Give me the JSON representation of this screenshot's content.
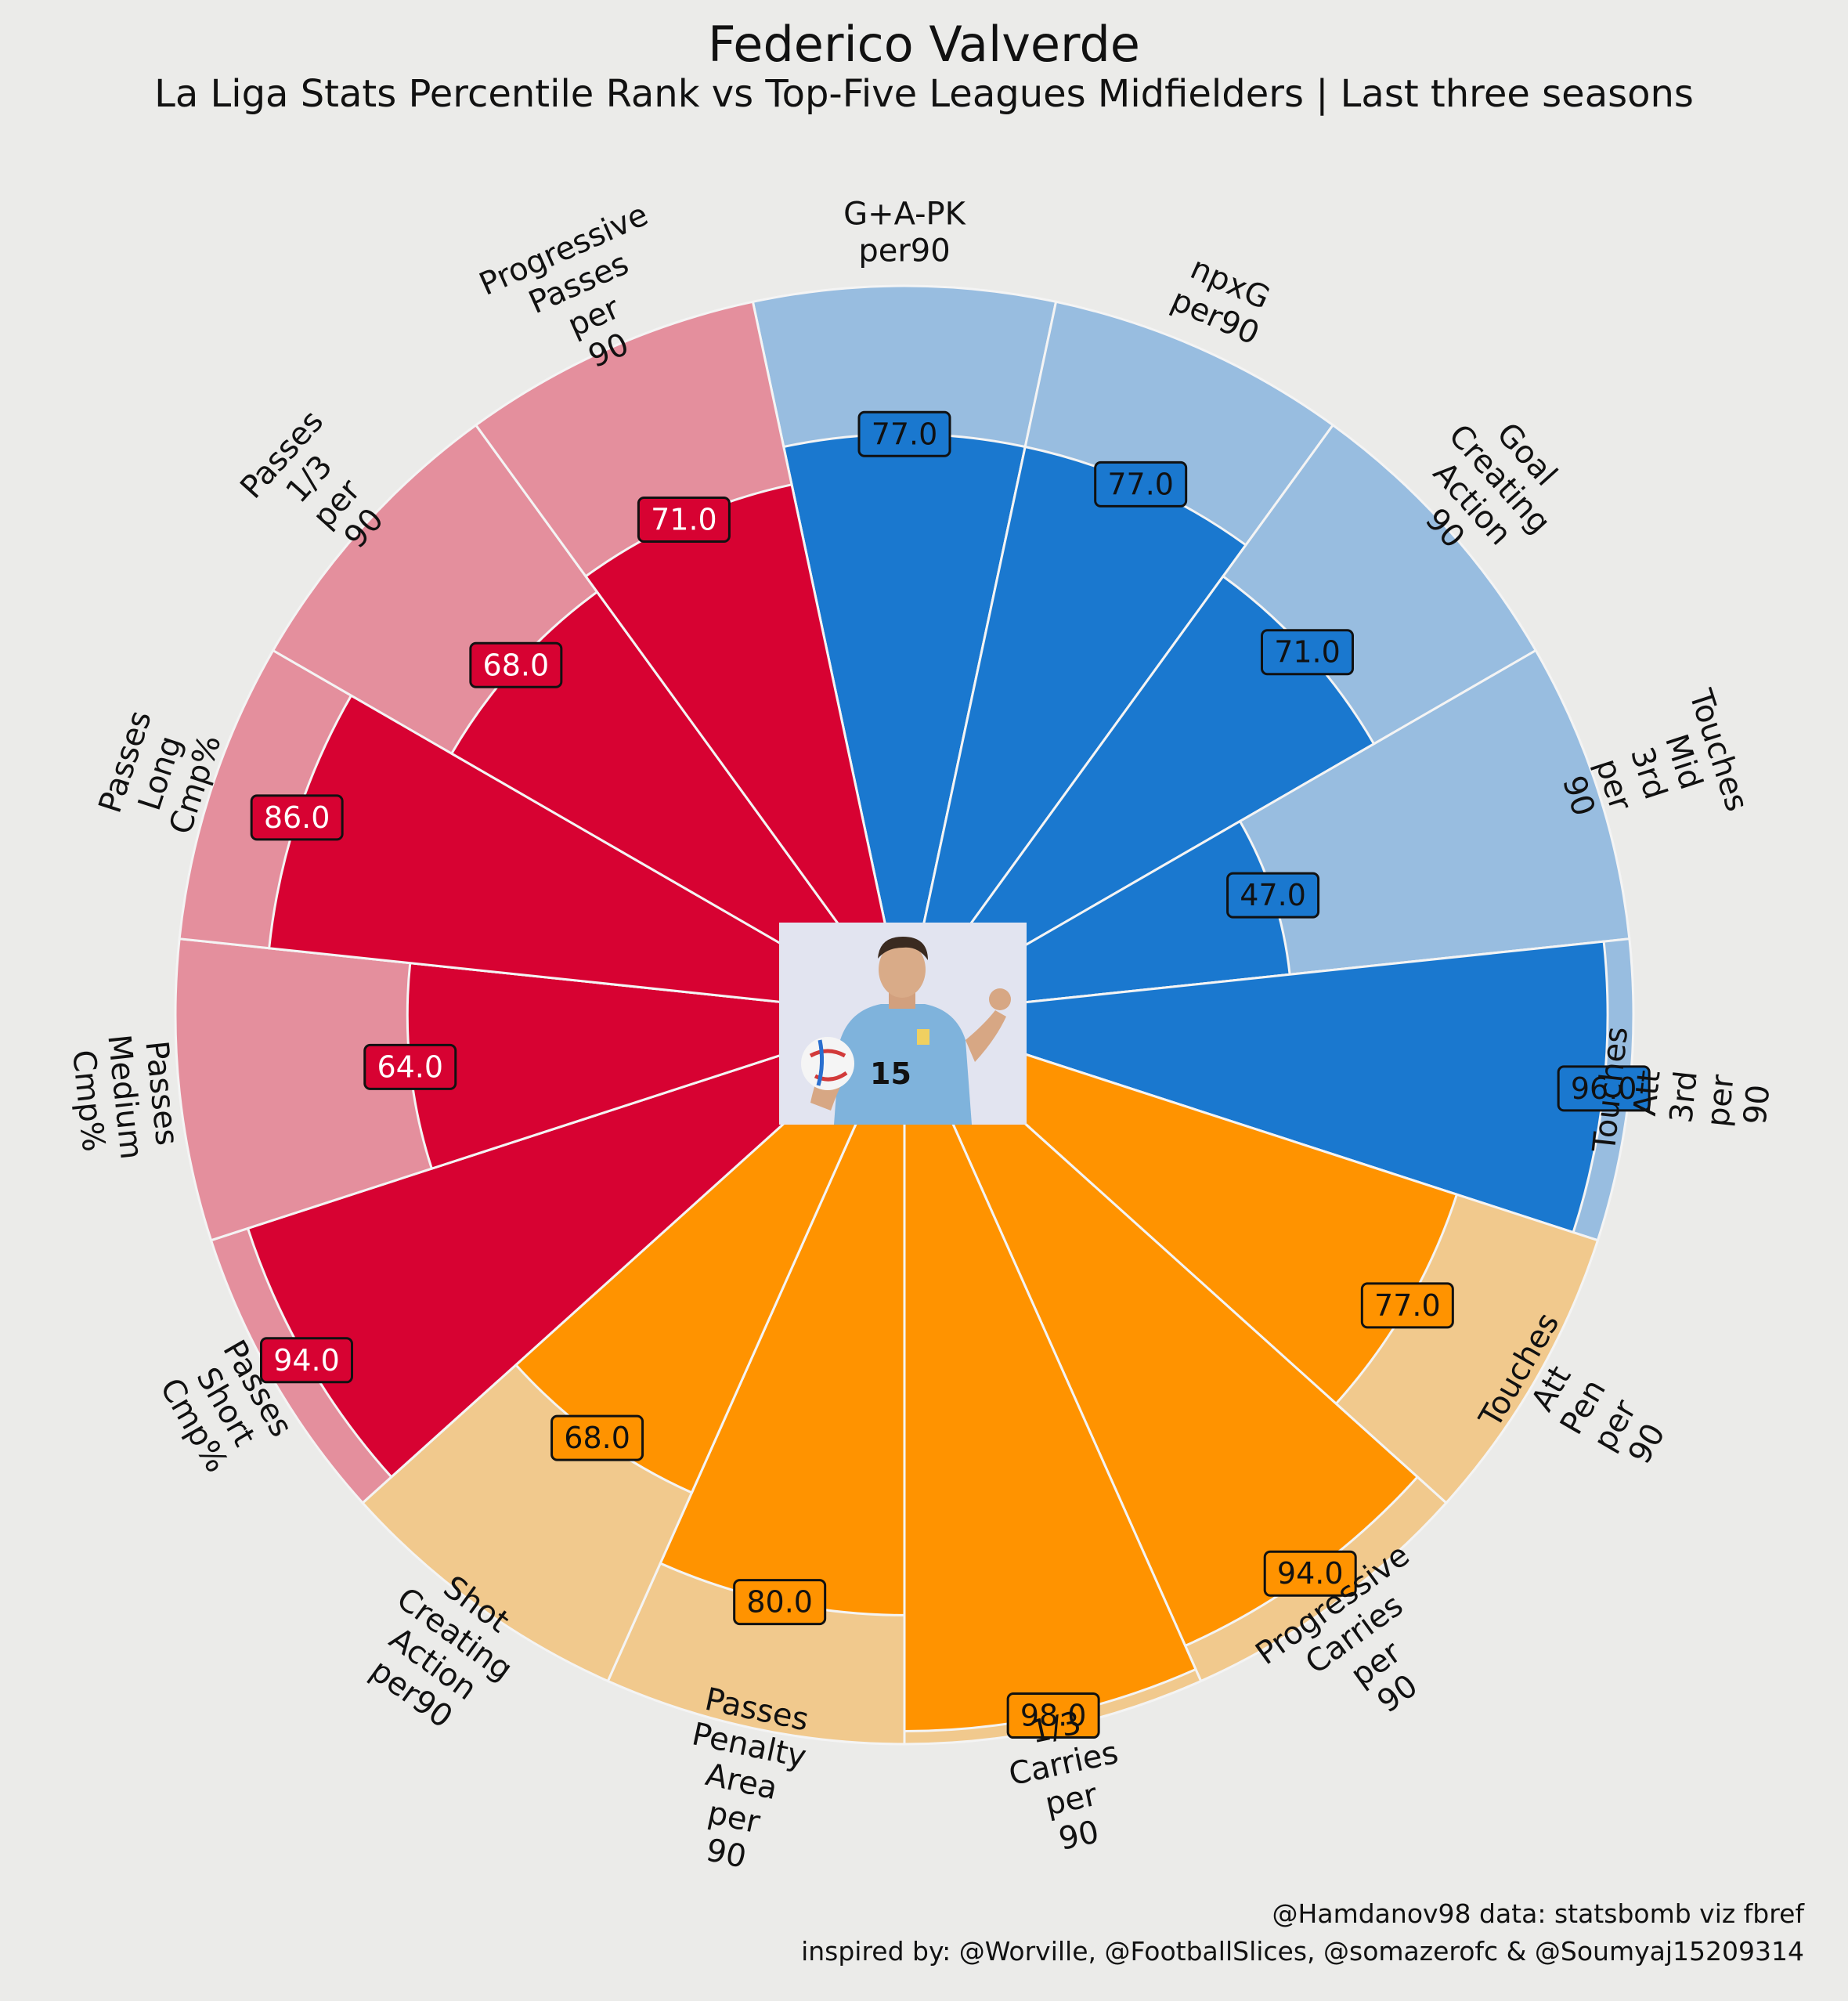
{
  "title": "Federico Valverde",
  "subtitle": "La Liga Stats Percentile Rank vs Top-Five Leagues Midfielders | Last three seasons",
  "credits": {
    "line1": "@Hamdanov98 data: statsbomb viz fbref",
    "line2": "inspired by: @Worville, @FootballSlices, @somazerofc & @Soumyaj15209314"
  },
  "player_photo": {
    "shirt_number": "15"
  },
  "colors": {
    "background": "#ebebe9",
    "attacking": "#1a78cf",
    "attacking_light": "#98bde0",
    "possession": "#ff9300",
    "possession_light": "#f1c98d",
    "passing": "#d70232",
    "passing_light": "#e48f9d",
    "separator": "#f4f4f4"
  },
  "chart_data": {
    "type": "polar-bar",
    "range": [
      0,
      100
    ],
    "categories": [
      "G+A-PK\nper90",
      "npxG\nper90",
      "Goal\nCreating\nAction\n90",
      "Touches\nMid\n3rd\nper\n90",
      "Touches\nAtt\n3rd\nper\n90",
      "Touches\nAtt\nPen\nper\n90",
      "Progressive\nCarries\nper\n90",
      "1/3\nCarries\nper\n90",
      "Passes\nPenalty\nArea\nper\n90",
      "Shot\nCreating\nAction\nper90",
      "Passes\nShort\nCmp%",
      "Passes\nMedium\nCmp%",
      "Passes\nLong\nCmp%",
      "Passes\n1/3\nper\n90",
      "Progressive\nPasses\nper\n90"
    ],
    "values": [
      77.0,
      77.0,
      71.0,
      47.0,
      96.0,
      77.0,
      94.0,
      98.0,
      80.0,
      68.0,
      94.0,
      64.0,
      86.0,
      68.0,
      71.0
    ],
    "value_labels": [
      "77.0",
      "77.0",
      "71.0",
      "47.0",
      "96.0",
      "77.0",
      "94.0",
      "98.0",
      "80.0",
      "68.0",
      "94.0",
      "64.0",
      "86.0",
      "68.0",
      "71.0"
    ],
    "groups": [
      "attacking",
      "attacking",
      "attacking",
      "attacking",
      "attacking",
      "possession",
      "possession",
      "possession",
      "possession",
      "possession",
      "passing",
      "passing",
      "passing",
      "passing",
      "passing"
    ]
  }
}
